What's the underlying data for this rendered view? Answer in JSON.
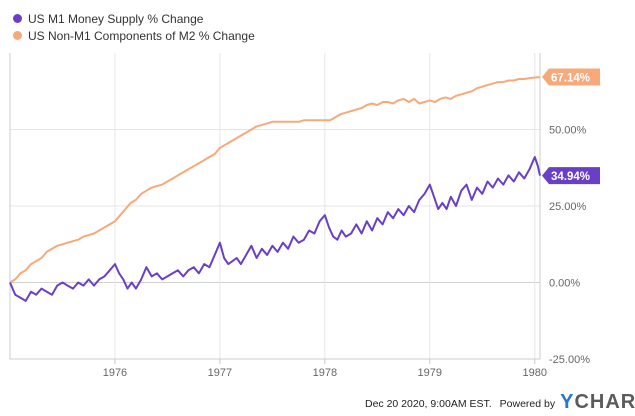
{
  "legend": {
    "m1_label": "US M1 Money Supply % Change",
    "nonm1_label": "US Non-M1 Components of M2 % Change"
  },
  "footer": {
    "date": "Dec 20 2020, 9:00AM EST.",
    "powered": "Powered by",
    "logo_y": "Y",
    "logo_rest": "CHARTS"
  },
  "colors": {
    "m1": "#6a3fc8",
    "nonm1": "#f7a979",
    "grid": "#e6e6e6",
    "axis": "#cccccc"
  },
  "chart_data": {
    "type": "line",
    "x_tick_labels": [
      "1976",
      "1977",
      "1978",
      "1979",
      "1980"
    ],
    "x_ticks": [
      1976,
      1977,
      1978,
      1979,
      1980
    ],
    "y_tick_labels": [
      "50.00%",
      "25.00%",
      "0.00%",
      "-25.00%"
    ],
    "y_ticks": [
      50,
      25,
      0,
      -25
    ],
    "xlim": [
      1975.0,
      1980.05
    ],
    "ylim": [
      -25,
      75
    ],
    "grid": true,
    "legend_position": "top-left",
    "series": [
      {
        "name": "US M1 Money Supply % Change",
        "color": "#6a3fc8",
        "end_label": "34.94%",
        "points": [
          [
            1975.0,
            0
          ],
          [
            1975.05,
            -4
          ],
          [
            1975.1,
            -5
          ],
          [
            1975.15,
            -6
          ],
          [
            1975.2,
            -3
          ],
          [
            1975.25,
            -4
          ],
          [
            1975.3,
            -2
          ],
          [
            1975.35,
            -3
          ],
          [
            1975.4,
            -4
          ],
          [
            1975.45,
            -1
          ],
          [
            1975.5,
            0
          ],
          [
            1975.55,
            -1
          ],
          [
            1975.6,
            -2
          ],
          [
            1975.65,
            0
          ],
          [
            1975.7,
            -1
          ],
          [
            1975.75,
            1
          ],
          [
            1975.8,
            -1
          ],
          [
            1975.85,
            1
          ],
          [
            1975.9,
            2
          ],
          [
            1975.95,
            4
          ],
          [
            1976.0,
            6
          ],
          [
            1976.04,
            3
          ],
          [
            1976.08,
            1
          ],
          [
            1976.12,
            -2
          ],
          [
            1976.16,
            0
          ],
          [
            1976.2,
            -2
          ],
          [
            1976.25,
            1
          ],
          [
            1976.3,
            5
          ],
          [
            1976.35,
            2
          ],
          [
            1976.4,
            3
          ],
          [
            1976.45,
            1
          ],
          [
            1976.5,
            2
          ],
          [
            1976.55,
            3
          ],
          [
            1976.6,
            4
          ],
          [
            1976.65,
            2
          ],
          [
            1976.7,
            4
          ],
          [
            1976.75,
            5
          ],
          [
            1976.8,
            3
          ],
          [
            1976.85,
            6
          ],
          [
            1976.9,
            5
          ],
          [
            1976.95,
            9
          ],
          [
            1977.0,
            13
          ],
          [
            1977.04,
            8
          ],
          [
            1977.08,
            6
          ],
          [
            1977.12,
            7
          ],
          [
            1977.16,
            8
          ],
          [
            1977.2,
            6
          ],
          [
            1977.25,
            9
          ],
          [
            1977.3,
            12
          ],
          [
            1977.35,
            8
          ],
          [
            1977.4,
            11
          ],
          [
            1977.45,
            9
          ],
          [
            1977.5,
            12
          ],
          [
            1977.55,
            10
          ],
          [
            1977.6,
            13
          ],
          [
            1977.65,
            11
          ],
          [
            1977.7,
            15
          ],
          [
            1977.75,
            13
          ],
          [
            1977.8,
            14
          ],
          [
            1977.85,
            17
          ],
          [
            1977.9,
            16
          ],
          [
            1977.95,
            20
          ],
          [
            1978.0,
            22
          ],
          [
            1978.04,
            18
          ],
          [
            1978.08,
            15
          ],
          [
            1978.12,
            14
          ],
          [
            1978.16,
            17
          ],
          [
            1978.2,
            15
          ],
          [
            1978.25,
            16
          ],
          [
            1978.3,
            19
          ],
          [
            1978.35,
            16
          ],
          [
            1978.4,
            20
          ],
          [
            1978.45,
            17
          ],
          [
            1978.5,
            21
          ],
          [
            1978.55,
            19
          ],
          [
            1978.6,
            23
          ],
          [
            1978.65,
            21
          ],
          [
            1978.7,
            24
          ],
          [
            1978.75,
            22
          ],
          [
            1978.8,
            25
          ],
          [
            1978.85,
            23
          ],
          [
            1978.9,
            27
          ],
          [
            1978.95,
            29
          ],
          [
            1979.0,
            32
          ],
          [
            1979.04,
            28
          ],
          [
            1979.08,
            24
          ],
          [
            1979.12,
            26
          ],
          [
            1979.16,
            24
          ],
          [
            1979.2,
            28
          ],
          [
            1979.25,
            25
          ],
          [
            1979.3,
            30
          ],
          [
            1979.35,
            32
          ],
          [
            1979.4,
            27
          ],
          [
            1979.45,
            31
          ],
          [
            1979.5,
            29
          ],
          [
            1979.55,
            33
          ],
          [
            1979.6,
            31
          ],
          [
            1979.65,
            34
          ],
          [
            1979.7,
            32
          ],
          [
            1979.75,
            35
          ],
          [
            1979.8,
            33
          ],
          [
            1979.85,
            36
          ],
          [
            1979.9,
            34
          ],
          [
            1979.95,
            37
          ],
          [
            1980.0,
            41
          ],
          [
            1980.03,
            38
          ],
          [
            1980.05,
            34.94
          ]
        ]
      },
      {
        "name": "US Non-M1 Components of M2 % Change",
        "color": "#f7a979",
        "end_label": "67.14%",
        "points": [
          [
            1975.0,
            0
          ],
          [
            1975.05,
            1
          ],
          [
            1975.1,
            3
          ],
          [
            1975.15,
            4
          ],
          [
            1975.2,
            6
          ],
          [
            1975.25,
            7
          ],
          [
            1975.3,
            8
          ],
          [
            1975.35,
            10
          ],
          [
            1975.4,
            11
          ],
          [
            1975.45,
            12
          ],
          [
            1975.5,
            12.5
          ],
          [
            1975.55,
            13
          ],
          [
            1975.6,
            13.5
          ],
          [
            1975.65,
            14
          ],
          [
            1975.7,
            15
          ],
          [
            1975.75,
            15.5
          ],
          [
            1975.8,
            16
          ],
          [
            1975.85,
            17
          ],
          [
            1975.9,
            18
          ],
          [
            1975.95,
            19
          ],
          [
            1976.0,
            20
          ],
          [
            1976.05,
            22
          ],
          [
            1976.1,
            24
          ],
          [
            1976.15,
            26
          ],
          [
            1976.2,
            27
          ],
          [
            1976.25,
            29
          ],
          [
            1976.3,
            30
          ],
          [
            1976.35,
            31
          ],
          [
            1976.4,
            31.5
          ],
          [
            1976.45,
            32
          ],
          [
            1976.5,
            33
          ],
          [
            1976.55,
            34
          ],
          [
            1976.6,
            35
          ],
          [
            1976.65,
            36
          ],
          [
            1976.7,
            37
          ],
          [
            1976.75,
            38
          ],
          [
            1976.8,
            39
          ],
          [
            1976.85,
            40
          ],
          [
            1976.9,
            41
          ],
          [
            1976.95,
            42
          ],
          [
            1977.0,
            44
          ],
          [
            1977.05,
            45
          ],
          [
            1977.1,
            46
          ],
          [
            1977.15,
            47
          ],
          [
            1977.2,
            48
          ],
          [
            1977.25,
            49
          ],
          [
            1977.3,
            50
          ],
          [
            1977.35,
            51
          ],
          [
            1977.4,
            51.5
          ],
          [
            1977.45,
            52
          ],
          [
            1977.5,
            52.5
          ],
          [
            1977.55,
            52.5
          ],
          [
            1977.6,
            52.5
          ],
          [
            1977.65,
            52.5
          ],
          [
            1977.7,
            52.5
          ],
          [
            1977.75,
            52.5
          ],
          [
            1977.8,
            53
          ],
          [
            1977.85,
            53
          ],
          [
            1977.9,
            53
          ],
          [
            1977.95,
            53
          ],
          [
            1978.0,
            53
          ],
          [
            1978.05,
            53
          ],
          [
            1978.1,
            54
          ],
          [
            1978.15,
            55
          ],
          [
            1978.2,
            55.5
          ],
          [
            1978.25,
            56
          ],
          [
            1978.3,
            56.5
          ],
          [
            1978.35,
            57
          ],
          [
            1978.4,
            58
          ],
          [
            1978.45,
            58.5
          ],
          [
            1978.5,
            58
          ],
          [
            1978.55,
            59
          ],
          [
            1978.6,
            59
          ],
          [
            1978.65,
            58.5
          ],
          [
            1978.7,
            59.5
          ],
          [
            1978.75,
            60
          ],
          [
            1978.8,
            59
          ],
          [
            1978.85,
            60
          ],
          [
            1978.9,
            58.5
          ],
          [
            1978.95,
            59
          ],
          [
            1979.0,
            59.5
          ],
          [
            1979.05,
            59
          ],
          [
            1979.1,
            60
          ],
          [
            1979.15,
            60.5
          ],
          [
            1979.2,
            60
          ],
          [
            1979.25,
            61
          ],
          [
            1979.3,
            61.5
          ],
          [
            1979.35,
            62
          ],
          [
            1979.4,
            62.5
          ],
          [
            1979.45,
            63.5
          ],
          [
            1979.5,
            64
          ],
          [
            1979.55,
            64.5
          ],
          [
            1979.6,
            65
          ],
          [
            1979.65,
            65.5
          ],
          [
            1979.7,
            65.5
          ],
          [
            1979.75,
            66
          ],
          [
            1979.8,
            66
          ],
          [
            1979.85,
            66.5
          ],
          [
            1979.9,
            66.5
          ],
          [
            1979.95,
            66.8
          ],
          [
            1980.0,
            67
          ],
          [
            1980.05,
            67.14
          ]
        ]
      }
    ]
  }
}
